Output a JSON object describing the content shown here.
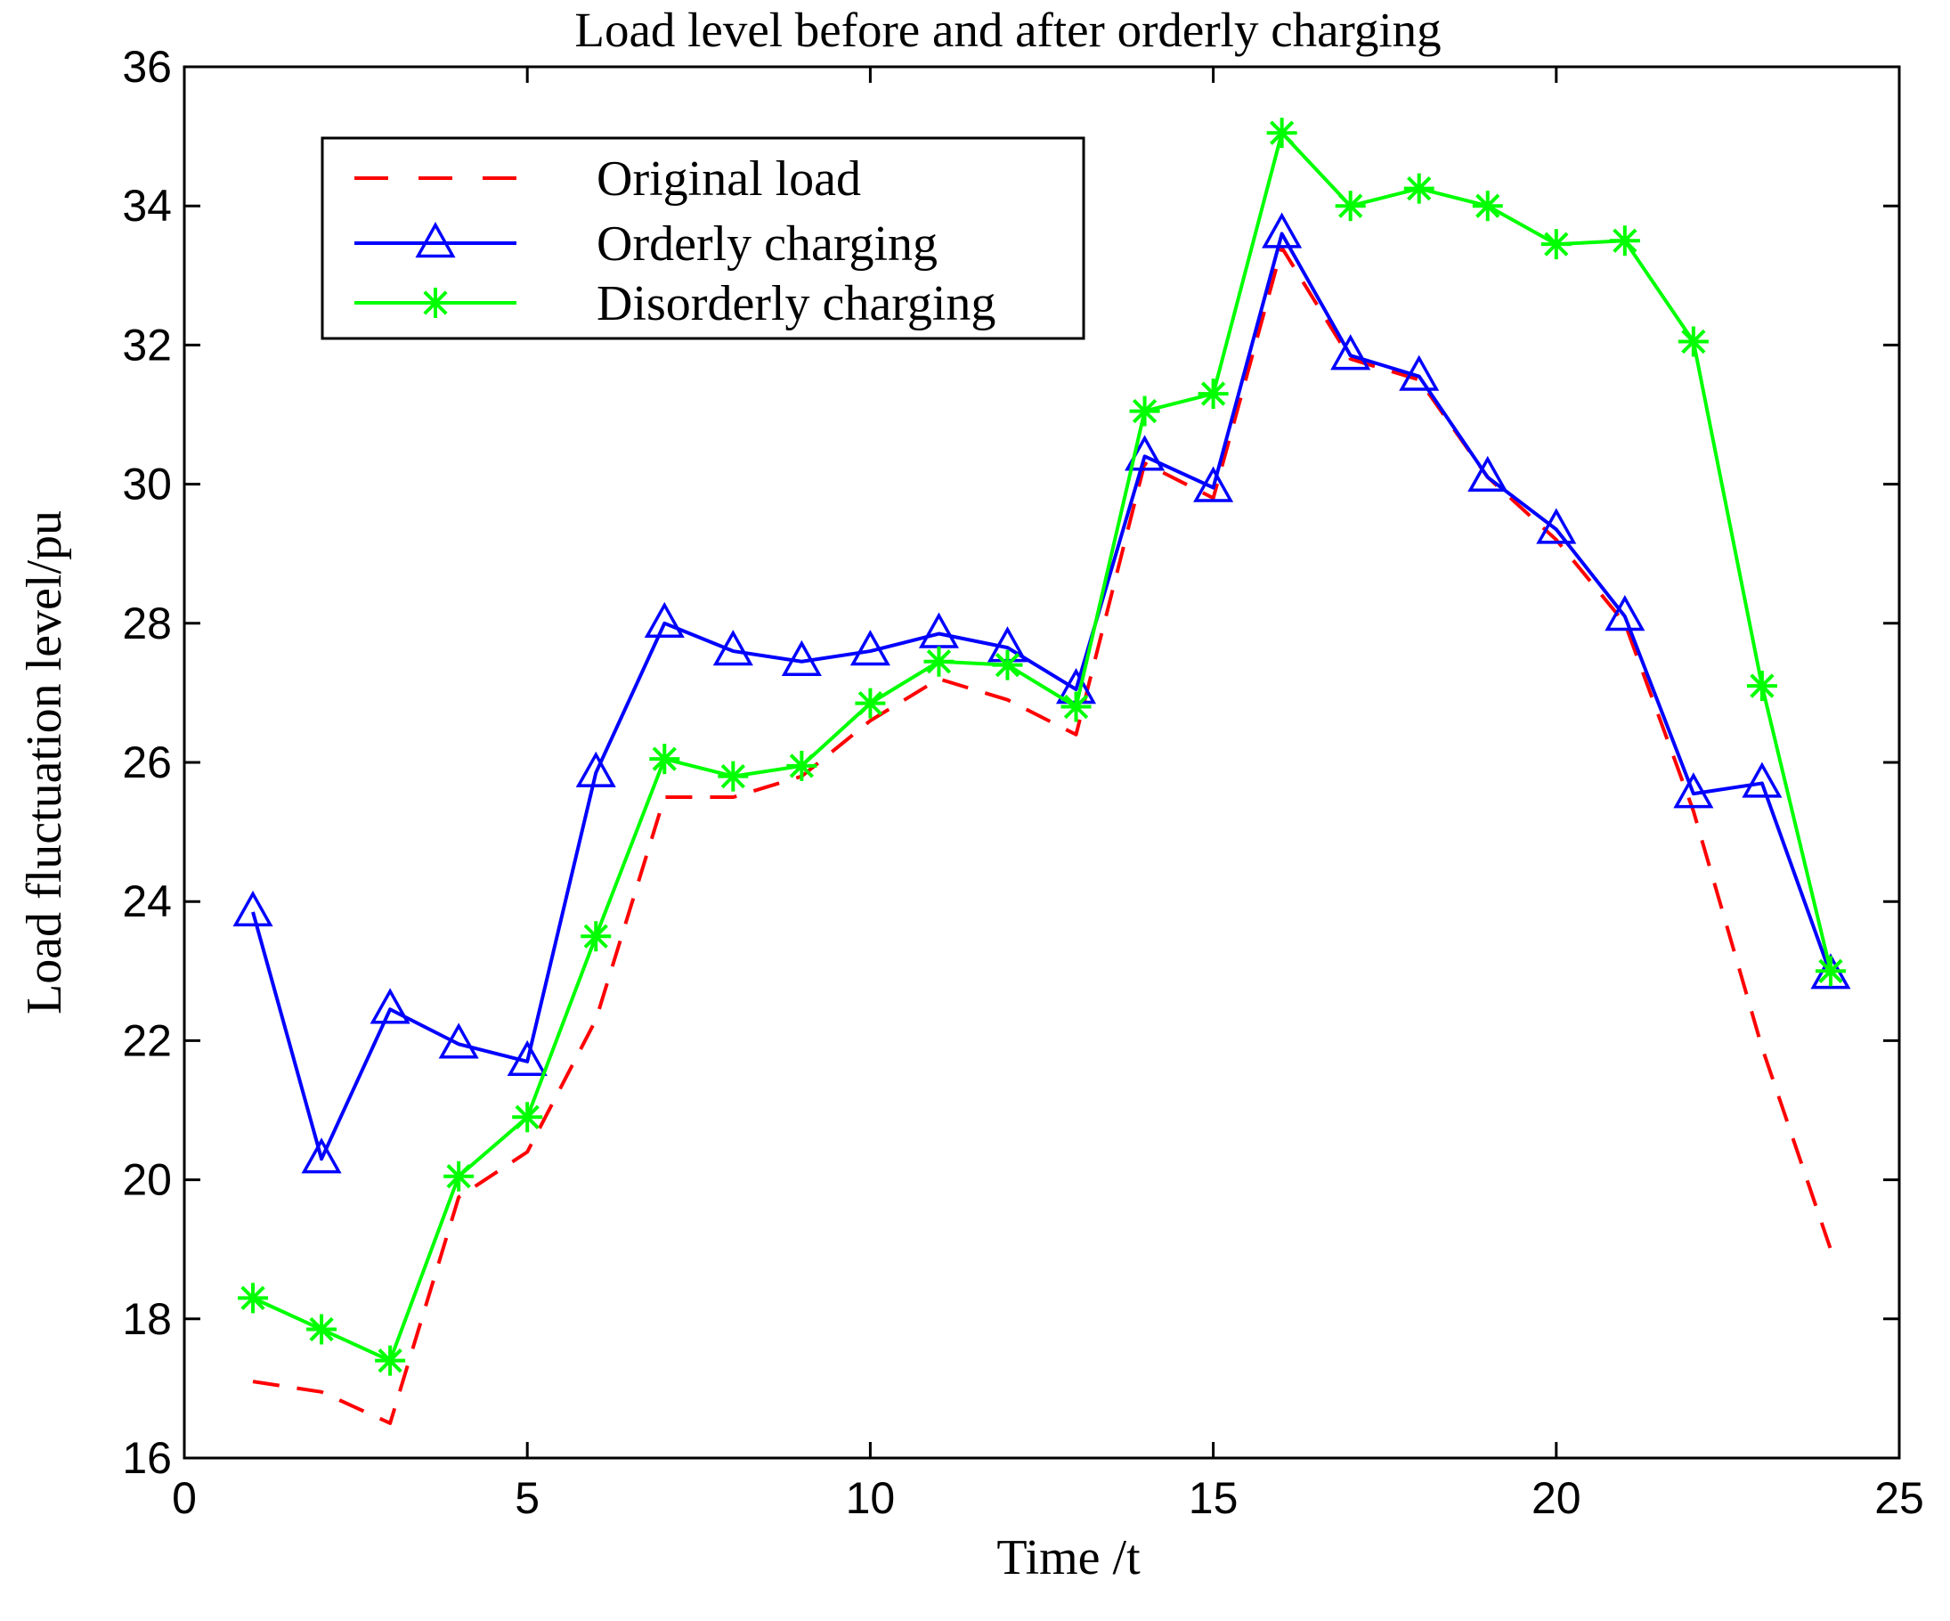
{
  "chart_data": {
    "type": "line",
    "title": "Load level before and after orderly charging",
    "xlabel": "Time /t",
    "ylabel": "Load fluctuation level/pu",
    "xlim": [
      0,
      25
    ],
    "ylim": [
      16,
      36
    ],
    "xticks": [
      0,
      5,
      10,
      15,
      20,
      25
    ],
    "yticks": [
      16,
      18,
      20,
      22,
      24,
      26,
      28,
      30,
      32,
      34,
      36
    ],
    "grid": false,
    "legend_position": "top-left",
    "x": [
      1,
      2,
      3,
      4,
      5,
      6,
      7,
      8,
      9,
      10,
      11,
      12,
      13,
      14,
      15,
      16,
      17,
      18,
      19,
      20,
      21,
      22,
      23,
      24
    ],
    "series": [
      {
        "name": "Original load",
        "color": "#ff0000",
        "style": "dashed",
        "marker": "none",
        "values": [
          17.1,
          16.95,
          16.5,
          19.75,
          20.4,
          22.3,
          25.5,
          25.5,
          25.8,
          26.6,
          27.2,
          26.9,
          26.4,
          30.3,
          29.8,
          33.4,
          31.8,
          31.5,
          30.1,
          29.2,
          28.0,
          25.3,
          21.9,
          19.0
        ]
      },
      {
        "name": "Orderly charging",
        "color": "#0000ff",
        "style": "solid",
        "marker": "triangle",
        "values": [
          23.85,
          20.3,
          22.45,
          21.95,
          21.7,
          25.85,
          28.0,
          27.6,
          27.45,
          27.6,
          27.85,
          27.65,
          27.05,
          30.4,
          29.95,
          33.6,
          31.85,
          31.55,
          30.1,
          29.35,
          28.1,
          25.55,
          25.7,
          22.95
        ]
      },
      {
        "name": "Disorderly charging",
        "color": "#00ff00",
        "style": "solid",
        "marker": "asterisk",
        "values": [
          18.3,
          17.85,
          17.4,
          20.05,
          20.9,
          23.5,
          26.05,
          25.8,
          25.95,
          26.85,
          27.45,
          27.4,
          26.8,
          31.05,
          31.3,
          35.05,
          34.0,
          34.25,
          34.0,
          33.45,
          33.5,
          32.05,
          27.1,
          23.0
        ]
      }
    ]
  }
}
